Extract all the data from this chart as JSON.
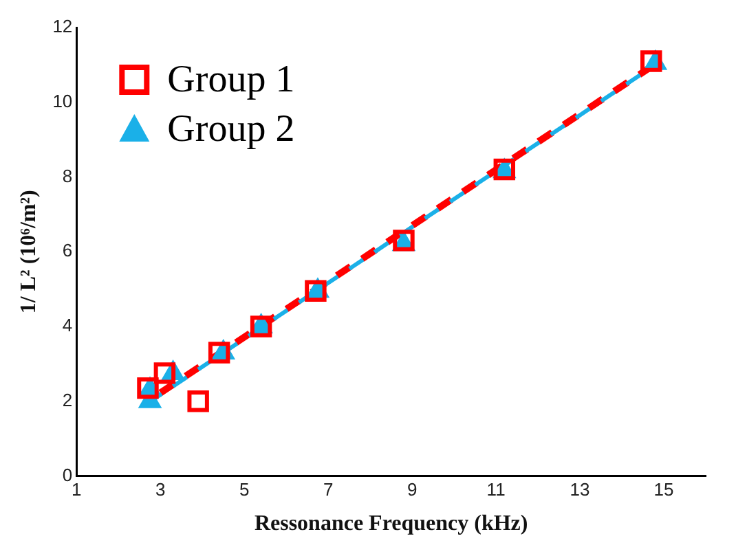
{
  "chart_data": {
    "type": "scatter",
    "xlabel": "Ressonance Frequency (kHz)",
    "ylabel": "1/ L² (10⁶/m²)",
    "xlim": [
      1,
      16
    ],
    "xticks": [
      1,
      3,
      5,
      7,
      9,
      11,
      13,
      15
    ],
    "ylim": [
      0,
      12
    ],
    "yticks": [
      0,
      2,
      4,
      6,
      8,
      10,
      12
    ],
    "grid": false,
    "legend": "top left",
    "series": [
      {
        "name": "Group 1",
        "color": "#ff0000",
        "marker": "square",
        "x": [
          2.7,
          3.1,
          3.9,
          4.4,
          5.4,
          6.7,
          8.8,
          11.2,
          14.7
        ],
        "values": [
          2.35,
          2.75,
          2.0,
          3.3,
          4.0,
          4.95,
          6.3,
          8.2,
          11.1
        ]
      },
      {
        "name": "Group 2",
        "color": "#1ab0e8",
        "marker": "triangle",
        "x": [
          2.75,
          2.75,
          3.3,
          4.5,
          5.4,
          6.75,
          8.8,
          11.2,
          14.8
        ],
        "values": [
          2.0,
          2.3,
          2.75,
          3.3,
          4.0,
          4.95,
          6.2,
          8.15,
          11.05
        ]
      },
      {
        "type": "line",
        "color": "#1ab0e8",
        "marker": "none",
        "line_style": "dashed",
        "x": [
          2.7,
          14.8
        ],
        "values": [
          1.95,
          11.0
        ]
      },
      {
        "type": "line",
        "color": "#ff0000",
        "marker": "none",
        "line_style": "dashed",
        "x": [
          2.7,
          14.7
        ],
        "values": [
          2.0,
          10.95
        ]
      }
    ]
  }
}
